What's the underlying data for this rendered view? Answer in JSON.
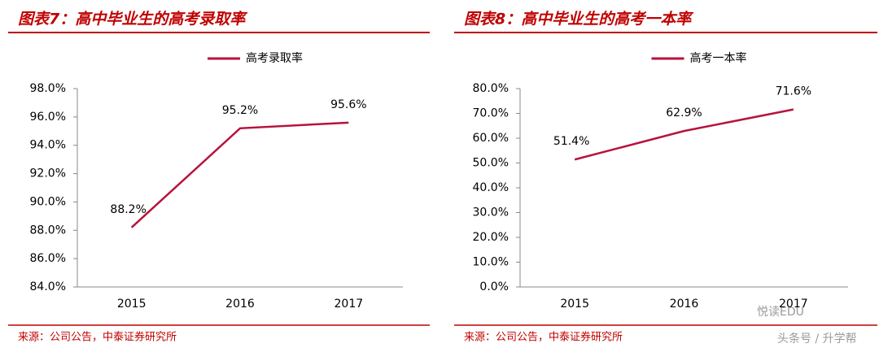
{
  "chart_data": [
    {
      "type": "line",
      "title": "图表7：高中毕业生的高考录取率",
      "categories": [
        "2015",
        "2016",
        "2017"
      ],
      "series": [
        {
          "name": "高考录取率",
          "color": "#b8123c",
          "values": [
            88.2,
            95.2,
            95.6
          ],
          "value_labels": [
            "88.2%",
            "95.2%",
            "95.6%"
          ]
        }
      ],
      "ylim": [
        84,
        98
      ],
      "yticks": [
        {
          "value": 84,
          "label": "84.0%"
        },
        {
          "value": 86,
          "label": "86.0%"
        },
        {
          "value": 88,
          "label": "88.0%"
        },
        {
          "value": 90,
          "label": "90.0%"
        },
        {
          "value": 92,
          "label": "92.0%"
        },
        {
          "value": 94,
          "label": "94.0%"
        },
        {
          "value": 96,
          "label": "96.0%"
        },
        {
          "value": 98,
          "label": "98.0%"
        }
      ],
      "source": "来源：公司公告，中泰证券研究所"
    },
    {
      "type": "line",
      "title": "图表8：高中毕业生的高考一本率",
      "categories": [
        "2015",
        "2016",
        "2017"
      ],
      "series": [
        {
          "name": "高考一本率",
          "color": "#b8123c",
          "values": [
            51.4,
            62.9,
            71.6
          ],
          "value_labels": [
            "51.4%",
            "62.9%",
            "71.6%"
          ]
        }
      ],
      "ylim": [
        0,
        80
      ],
      "yticks": [
        {
          "value": 0,
          "label": "0.0%"
        },
        {
          "value": 10,
          "label": "10.0%"
        },
        {
          "value": 20,
          "label": "20.0%"
        },
        {
          "value": 30,
          "label": "30.0%"
        },
        {
          "value": 40,
          "label": "40.0%"
        },
        {
          "value": 50,
          "label": "50.0%"
        },
        {
          "value": 60,
          "label": "60.0%"
        },
        {
          "value": 70,
          "label": "70.0%"
        },
        {
          "value": 80,
          "label": "80.0%"
        }
      ],
      "source": "来源：公司公告，中泰证券研究所"
    }
  ],
  "watermark": {
    "brand": "悦读EDU",
    "credit": "头条号 / 升学帮"
  }
}
